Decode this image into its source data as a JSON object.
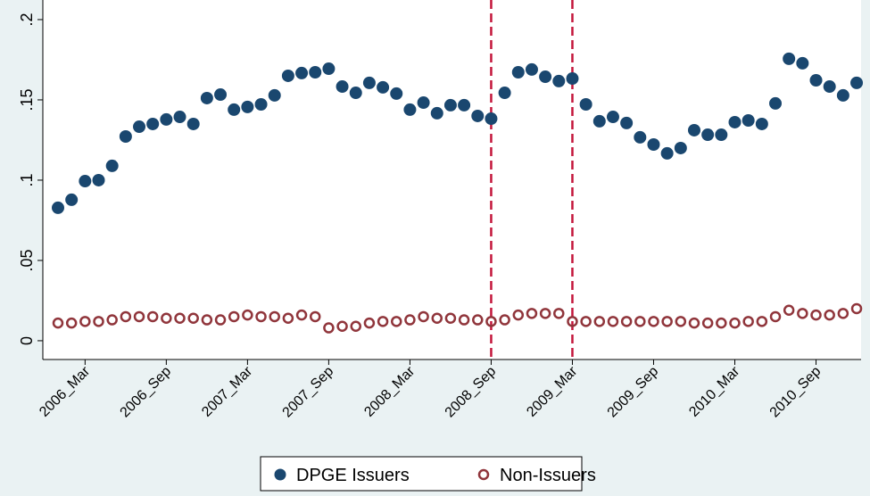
{
  "chart_data": {
    "type": "scatter",
    "categories": [
      null,
      null,
      "2006_Mar",
      null,
      null,
      null,
      null,
      null,
      "2006_Sep",
      null,
      null,
      null,
      null,
      null,
      "2007_Mar",
      null,
      null,
      null,
      null,
      null,
      "2007_Sep",
      null,
      null,
      null,
      null,
      null,
      "2008_Mar",
      null,
      null,
      null,
      null,
      null,
      "2008_Sep",
      null,
      null,
      null,
      null,
      null,
      "2009_Mar",
      null,
      null,
      null,
      null,
      null,
      "2009_Sep",
      null,
      null,
      null,
      null,
      null,
      "2010_Mar",
      null,
      null,
      null,
      null,
      null,
      "2010_Sep",
      null,
      null,
      null
    ],
    "series": [
      {
        "name": "DPGE Issuers",
        "color": "#1a476f",
        "marker": "filled",
        "values": [
          0.0828,
          0.0878,
          0.0994,
          0.1,
          0.1089,
          0.1272,
          0.1333,
          0.135,
          0.1378,
          0.1394,
          0.135,
          0.1511,
          0.1533,
          0.1439,
          0.1456,
          0.1472,
          0.1528,
          0.165,
          0.1667,
          0.1672,
          0.1694,
          0.1583,
          0.1544,
          0.1606,
          0.1578,
          0.1539,
          0.1439,
          0.1483,
          0.1417,
          0.1467,
          0.1467,
          0.14,
          0.1383,
          0.1544,
          0.1672,
          0.1689,
          0.1644,
          0.1617,
          0.1633,
          0.1472,
          0.1367,
          0.1394,
          0.1356,
          0.1267,
          0.1222,
          0.1167,
          0.12,
          0.1311,
          0.1283,
          0.1283,
          0.1361,
          0.1372,
          0.135,
          0.1478,
          0.1756,
          0.1728,
          0.1622,
          0.1583,
          0.1528,
          0.1606
        ]
      },
      {
        "name": "Non-Issuers",
        "color": "#90353b",
        "marker": "hollow",
        "values": [
          0.011,
          0.011,
          0.012,
          0.012,
          0.013,
          0.015,
          0.015,
          0.015,
          0.014,
          0.014,
          0.014,
          0.013,
          0.013,
          0.015,
          0.016,
          0.015,
          0.015,
          0.014,
          0.016,
          0.015,
          0.008,
          0.009,
          0.009,
          0.011,
          0.012,
          0.012,
          0.013,
          0.015,
          0.014,
          0.014,
          0.013,
          0.013,
          0.012,
          0.013,
          0.016,
          0.017,
          0.017,
          0.017,
          0.012,
          0.012,
          0.012,
          0.012,
          0.012,
          0.012,
          0.012,
          0.012,
          0.012,
          0.011,
          0.011,
          0.011,
          0.011,
          0.012,
          0.012,
          0.015,
          0.019,
          0.017,
          0.016,
          0.016,
          0.017,
          0.02
        ]
      }
    ],
    "ylim": [
      -0.0117,
      0.2122
    ],
    "yticks": [
      0,
      {
        "value": 0.05,
        "label": ".05"
      },
      {
        "value": 0.1,
        "label": ".1"
      },
      {
        "value": 0.15,
        "label": ".15"
      },
      {
        "value": 0.2,
        "label": ".2"
      }
    ],
    "vlines": [
      32,
      38
    ],
    "vline_color": "#c4163b",
    "grid": false,
    "legend": "bottom"
  }
}
